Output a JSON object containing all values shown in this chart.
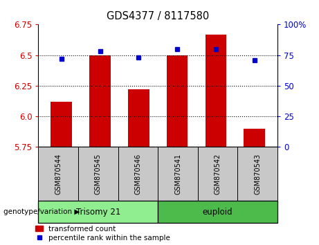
{
  "title": "GDS4377 / 8117580",
  "samples": [
    "GSM870544",
    "GSM870545",
    "GSM870546",
    "GSM870541",
    "GSM870542",
    "GSM870543"
  ],
  "red_values": [
    6.12,
    6.5,
    6.22,
    6.5,
    6.67,
    5.9
  ],
  "blue_values": [
    72.0,
    78.0,
    73.0,
    80.0,
    80.0,
    71.0
  ],
  "ylim_left": [
    5.75,
    6.75
  ],
  "ylim_right": [
    0,
    100
  ],
  "yticks_left": [
    5.75,
    6.0,
    6.25,
    6.5,
    6.75
  ],
  "yticks_right": [
    0,
    25,
    50,
    75,
    100
  ],
  "ytick_labels_right": [
    "0",
    "25",
    "50",
    "75",
    "100%"
  ],
  "grid_lines": [
    6.0,
    6.25,
    6.5
  ],
  "bar_color": "#cc0000",
  "dot_color": "#0000cc",
  "bar_base": 5.75,
  "groups": [
    {
      "label": "Trisomy 21",
      "start": 0,
      "end": 2,
      "color": "#90ee90"
    },
    {
      "label": "euploid",
      "start": 3,
      "end": 5,
      "color": "#4cbb4c"
    }
  ],
  "group_label_prefix": "genotype/variation",
  "legend_red": "transformed count",
  "legend_blue": "percentile rank within the sample",
  "sample_box_color": "#c8c8c8",
  "tick_label_color_left": "#cc0000",
  "tick_label_color_right": "#0000cc"
}
